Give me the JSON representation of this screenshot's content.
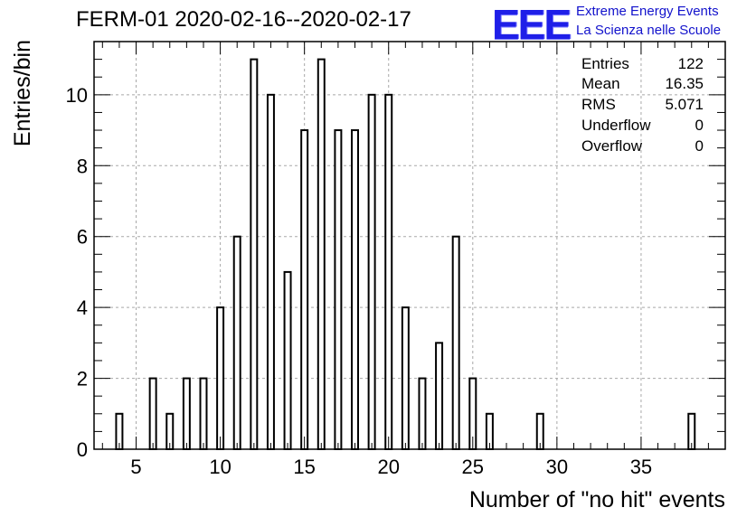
{
  "title": "FERM-01 2020-02-16--2020-02-17",
  "logo": {
    "mark": "EEE",
    "line1": "Extreme Energy Events",
    "line2": "La Scienza nelle Scuole",
    "color": "#1f1fe8"
  },
  "stats": [
    {
      "label": "Entries",
      "value": "122"
    },
    {
      "label": "Mean",
      "value": "16.35"
    },
    {
      "label": "RMS",
      "value": "5.071"
    },
    {
      "label": "Underflow",
      "value": "0"
    },
    {
      "label": "Overflow",
      "value": "0"
    }
  ],
  "chart_data": {
    "type": "bar",
    "xlabel": "Number of \"no hit\" events",
    "ylabel": "Entries/bin",
    "xlim": [
      2.5,
      40
    ],
    "ylim": [
      0,
      11.5
    ],
    "x_ticks": [
      5,
      10,
      15,
      20,
      25,
      30,
      35
    ],
    "y_ticks": [
      0,
      2,
      4,
      6,
      8,
      10
    ],
    "grid": true,
    "bin_width": 0.375,
    "bins": [
      {
        "x": 4,
        "y": 1
      },
      {
        "x": 6,
        "y": 2
      },
      {
        "x": 7,
        "y": 1
      },
      {
        "x": 8,
        "y": 2
      },
      {
        "x": 9,
        "y": 2
      },
      {
        "x": 10,
        "y": 4
      },
      {
        "x": 11,
        "y": 6
      },
      {
        "x": 12,
        "y": 11
      },
      {
        "x": 13,
        "y": 10
      },
      {
        "x": 14,
        "y": 5
      },
      {
        "x": 15,
        "y": 9
      },
      {
        "x": 16,
        "y": 11
      },
      {
        "x": 17,
        "y": 9
      },
      {
        "x": 18,
        "y": 9
      },
      {
        "x": 19,
        "y": 10
      },
      {
        "x": 20,
        "y": 10
      },
      {
        "x": 21,
        "y": 4
      },
      {
        "x": 22,
        "y": 2
      },
      {
        "x": 23,
        "y": 3
      },
      {
        "x": 24,
        "y": 6
      },
      {
        "x": 25,
        "y": 2
      },
      {
        "x": 26,
        "y": 1
      },
      {
        "x": 29,
        "y": 1
      },
      {
        "x": 38,
        "y": 1
      }
    ]
  }
}
